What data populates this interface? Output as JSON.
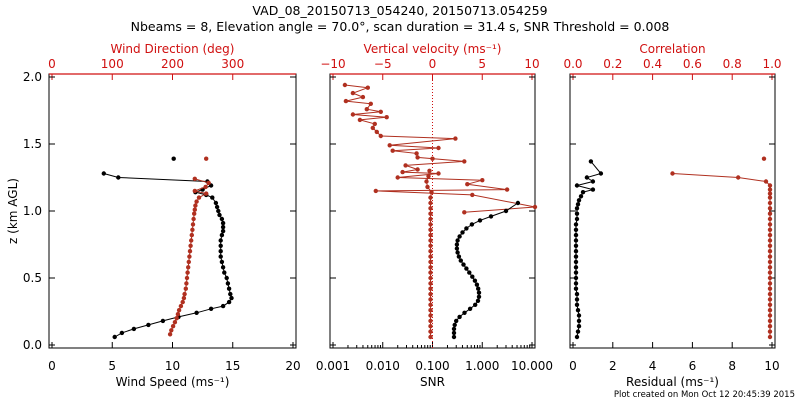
{
  "header": {
    "title_line1": "VAD_08_20150713_054240, 20150713.054259",
    "title_line2": "Nbeams = 8, Elevation angle = 70.0°, scan duration = 31.4 s, SNR Threshold = 0.008"
  },
  "footer": {
    "created": "Plot created on Mon Oct 12 20:45:39 2015"
  },
  "colors": {
    "black_series": "#000000",
    "red_series": "#b03020",
    "red_axis": "#d01010"
  },
  "chart_data": [
    {
      "type": "line",
      "ylabel": "z (km AGL)",
      "ylim": [
        0,
        2.0
      ],
      "y_ticks": [
        "0.0",
        "0.5",
        "1.0",
        "1.5",
        "2.0"
      ],
      "bottom_axis": {
        "label": "Wind Speed (ms⁻¹)",
        "range": [
          0,
          20
        ],
        "ticks": [
          "0",
          "5",
          "10",
          "15",
          "20"
        ]
      },
      "top_axis": {
        "label": "Wind Direction (deg)",
        "range": [
          0,
          400
        ],
        "ticks": [
          "0",
          "100",
          "200",
          "300"
        ]
      },
      "series": [
        {
          "axis": "bottom",
          "points": [
            [
              4.3,
              1.28
            ],
            [
              5.5,
              1.25
            ],
            [
              12.9,
              1.22
            ],
            [
              13.2,
              1.19
            ],
            [
              12.5,
              1.16
            ],
            [
              11.9,
              1.14
            ],
            [
              12.8,
              1.12
            ],
            [
              13.3,
              1.1
            ],
            [
              13.6,
              1.06
            ],
            [
              13.7,
              1.03
            ],
            [
              13.8,
              1.0
            ],
            [
              13.9,
              0.97
            ],
            [
              14.1,
              0.94
            ],
            [
              14.2,
              0.91
            ],
            [
              14.2,
              0.88
            ],
            [
              14.2,
              0.85
            ],
            [
              14.1,
              0.82
            ],
            [
              14.0,
              0.78
            ],
            [
              14.0,
              0.74
            ],
            [
              14.0,
              0.7
            ],
            [
              14.0,
              0.66
            ],
            [
              14.1,
              0.62
            ],
            [
              14.2,
              0.58
            ],
            [
              14.3,
              0.54
            ],
            [
              14.5,
              0.5
            ],
            [
              14.6,
              0.46
            ],
            [
              14.7,
              0.42
            ],
            [
              14.8,
              0.38
            ],
            [
              14.9,
              0.35
            ],
            [
              14.7,
              0.32
            ],
            [
              14.2,
              0.29
            ],
            [
              13.2,
              0.27
            ],
            [
              12.0,
              0.24
            ],
            [
              10.5,
              0.21
            ],
            [
              9.2,
              0.18
            ],
            [
              8.0,
              0.15
            ],
            [
              6.8,
              0.12
            ],
            [
              5.8,
              0.09
            ],
            [
              5.2,
              0.06
            ]
          ],
          "isolated": [
            [
              10.1,
              1.39
            ]
          ]
        },
        {
          "axis": "top",
          "points": [
            [
              237,
              1.24
            ],
            [
              260,
              1.21
            ],
            [
              255,
              1.18
            ],
            [
              237,
              1.15
            ],
            [
              256,
              1.13
            ],
            [
              244,
              1.1
            ],
            [
              240,
              1.07
            ],
            [
              238,
              1.04
            ],
            [
              237,
              1.01
            ],
            [
              236,
              0.98
            ],
            [
              235,
              0.94
            ],
            [
              234,
              0.9
            ],
            [
              233,
              0.86
            ],
            [
              232,
              0.82
            ],
            [
              231,
              0.78
            ],
            [
              230,
              0.74
            ],
            [
              229,
              0.7
            ],
            [
              228,
              0.66
            ],
            [
              227,
              0.62
            ],
            [
              226,
              0.58
            ],
            [
              225,
              0.54
            ],
            [
              224,
              0.5
            ],
            [
              223,
              0.46
            ],
            [
              222,
              0.42
            ],
            [
              220,
              0.38
            ],
            [
              219,
              0.35
            ],
            [
              217,
              0.32
            ],
            [
              214,
              0.29
            ],
            [
              211,
              0.26
            ],
            [
              209,
              0.23
            ],
            [
              207,
              0.2
            ],
            [
              204,
              0.17
            ],
            [
              201,
              0.14
            ],
            [
              198,
              0.11
            ],
            [
              196,
              0.08
            ]
          ],
          "isolated": [
            [
              256,
              1.39
            ]
          ]
        }
      ]
    },
    {
      "type": "line",
      "ylim": [
        0,
        2.0
      ],
      "bottom_axis": {
        "label": "SNR",
        "scale": "log",
        "range": [
          0.001,
          10
        ],
        "ticks": [
          "0.001",
          "0.010",
          "0.100",
          "1.000",
          "10.000"
        ]
      },
      "top_axis": {
        "label": "Vertical velocity (ms⁻¹)",
        "range": [
          -10,
          10
        ],
        "ticks": [
          "−10",
          "−5",
          "0",
          "5",
          "10"
        ]
      },
      "top_zero_line": true,
      "series": [
        {
          "axis": "top",
          "points": [
            [
              -8.8,
              1.94
            ],
            [
              -6.5,
              1.92
            ],
            [
              -8.0,
              1.88
            ],
            [
              -7.0,
              1.85
            ],
            [
              -8.7,
              1.82
            ],
            [
              -6.2,
              1.8
            ],
            [
              -6.6,
              1.76
            ],
            [
              -5.2,
              1.74
            ],
            [
              -8.0,
              1.72
            ],
            [
              -4.6,
              1.7
            ],
            [
              -7.3,
              1.68
            ],
            [
              -5.8,
              1.65
            ],
            [
              -6.0,
              1.62
            ],
            [
              -5.6,
              1.59
            ],
            [
              -5.2,
              1.56
            ],
            [
              2.3,
              1.54
            ],
            [
              -4.3,
              1.49
            ],
            [
              0.6,
              1.47
            ],
            [
              -4.0,
              1.45
            ],
            [
              -1.6,
              1.43
            ],
            [
              -1.5,
              1.4
            ],
            [
              3.2,
              1.37
            ],
            [
              -2.7,
              1.34
            ],
            [
              -1.5,
              1.31
            ],
            [
              -3.0,
              1.29
            ],
            [
              0.6,
              1.28
            ],
            [
              -3.5,
              1.25
            ],
            [
              5.0,
              1.23
            ],
            [
              3.5,
              1.2
            ],
            [
              7.5,
              1.16
            ],
            [
              -5.7,
              1.15
            ],
            [
              4.0,
              1.12
            ],
            [
              10.3,
              1.03
            ],
            [
              3.2,
              0.99
            ]
          ],
          "isolated": []
        },
        {
          "axis": "bottom_log",
          "points": [
            [
              5.2,
              1.06
            ],
            [
              3.0,
              1.0
            ],
            [
              1.5,
              0.96
            ],
            [
              0.9,
              0.93
            ],
            [
              0.62,
              0.9
            ],
            [
              0.48,
              0.87
            ],
            [
              0.4,
              0.84
            ],
            [
              0.35,
              0.81
            ],
            [
              0.32,
              0.78
            ],
            [
              0.31,
              0.75
            ],
            [
              0.31,
              0.72
            ],
            [
              0.32,
              0.69
            ],
            [
              0.34,
              0.66
            ],
            [
              0.37,
              0.63
            ],
            [
              0.42,
              0.6
            ],
            [
              0.48,
              0.57
            ],
            [
              0.55,
              0.54
            ],
            [
              0.63,
              0.51
            ],
            [
              0.71,
              0.48
            ],
            [
              0.78,
              0.45
            ],
            [
              0.83,
              0.42
            ],
            [
              0.86,
              0.39
            ],
            [
              0.86,
              0.36
            ],
            [
              0.82,
              0.33
            ],
            [
              0.72,
              0.3
            ],
            [
              0.57,
              0.27
            ],
            [
              0.44,
              0.24
            ],
            [
              0.35,
              0.21
            ],
            [
              0.3,
              0.18
            ],
            [
              0.28,
              0.15
            ],
            [
              0.27,
              0.12
            ],
            [
              0.27,
              0.09
            ],
            [
              0.27,
              0.06
            ]
          ],
          "isolated": []
        },
        {
          "axis": "top",
          "points": [
            [
              -0.3,
              1.3
            ],
            [
              -0.4,
              1.26
            ],
            [
              -0.6,
              1.22
            ],
            [
              -0.5,
              1.18
            ],
            [
              -0.1,
              1.14
            ],
            [
              -0.2,
              1.1
            ],
            [
              -0.2,
              1.06
            ],
            [
              -0.2,
              1.02
            ],
            [
              -0.2,
              0.98
            ],
            [
              -0.2,
              0.94
            ],
            [
              -0.2,
              0.9
            ],
            [
              -0.2,
              0.86
            ],
            [
              -0.2,
              0.82
            ],
            [
              -0.2,
              0.78
            ],
            [
              -0.2,
              0.74
            ],
            [
              -0.2,
              0.7
            ],
            [
              -0.2,
              0.66
            ],
            [
              -0.2,
              0.62
            ],
            [
              -0.2,
              0.58
            ],
            [
              -0.2,
              0.54
            ],
            [
              -0.2,
              0.5
            ],
            [
              -0.2,
              0.46
            ],
            [
              -0.2,
              0.42
            ],
            [
              -0.2,
              0.38
            ],
            [
              -0.2,
              0.34
            ],
            [
              -0.2,
              0.3
            ],
            [
              -0.2,
              0.26
            ],
            [
              -0.2,
              0.22
            ],
            [
              -0.2,
              0.18
            ],
            [
              -0.2,
              0.14
            ],
            [
              -0.2,
              0.1
            ],
            [
              -0.2,
              0.06
            ]
          ],
          "isolated": [
            [
              0.0,
              1.39
            ]
          ]
        }
      ]
    },
    {
      "type": "line",
      "ylim": [
        0,
        2.0
      ],
      "bottom_axis": {
        "label": "Residual (ms⁻¹)",
        "range": [
          0,
          10
        ],
        "ticks": [
          "0",
          "2",
          "4",
          "6",
          "8",
          "10"
        ]
      },
      "top_axis": {
        "label": "Correlation",
        "range": [
          0,
          1.0
        ],
        "ticks": [
          "0.0",
          "0.2",
          "0.4",
          "0.6",
          "0.8",
          "1.0"
        ]
      },
      "series": [
        {
          "axis": "bottom",
          "points": [
            [
              0.9,
              1.37
            ],
            [
              1.4,
              1.28
            ],
            [
              0.7,
              1.25
            ],
            [
              1.0,
              1.22
            ],
            [
              0.2,
              1.19
            ],
            [
              1.0,
              1.16
            ],
            [
              0.5,
              1.14
            ],
            [
              0.4,
              1.11
            ],
            [
              0.3,
              1.08
            ],
            [
              0.25,
              1.05
            ],
            [
              0.2,
              1.02
            ],
            [
              0.2,
              0.98
            ],
            [
              0.2,
              0.94
            ],
            [
              0.15,
              0.9
            ],
            [
              0.15,
              0.86
            ],
            [
              0.15,
              0.82
            ],
            [
              0.15,
              0.78
            ],
            [
              0.15,
              0.74
            ],
            [
              0.15,
              0.7
            ],
            [
              0.15,
              0.66
            ],
            [
              0.15,
              0.62
            ],
            [
              0.15,
              0.58
            ],
            [
              0.15,
              0.54
            ],
            [
              0.15,
              0.5
            ],
            [
              0.15,
              0.46
            ],
            [
              0.15,
              0.42
            ],
            [
              0.2,
              0.38
            ],
            [
              0.2,
              0.34
            ],
            [
              0.2,
              0.3
            ],
            [
              0.25,
              0.26
            ],
            [
              0.3,
              0.22
            ],
            [
              0.3,
              0.18
            ],
            [
              0.3,
              0.14
            ],
            [
              0.25,
              0.1
            ],
            [
              0.2,
              0.06
            ]
          ],
          "isolated": []
        },
        {
          "axis": "top",
          "points": [
            [
              0.5,
              1.28
            ],
            [
              0.83,
              1.25
            ],
            [
              0.97,
              1.22
            ],
            [
              0.99,
              1.19
            ],
            [
              0.99,
              1.16
            ],
            [
              0.99,
              1.13
            ],
            [
              0.99,
              1.1
            ],
            [
              0.99,
              1.06
            ],
            [
              0.99,
              1.02
            ],
            [
              0.99,
              0.98
            ],
            [
              0.99,
              0.94
            ],
            [
              0.99,
              0.9
            ],
            [
              0.99,
              0.86
            ],
            [
              0.99,
              0.82
            ],
            [
              0.99,
              0.78
            ],
            [
              0.99,
              0.74
            ],
            [
              0.99,
              0.7
            ],
            [
              0.99,
              0.66
            ],
            [
              0.99,
              0.62
            ],
            [
              0.99,
              0.58
            ],
            [
              0.99,
              0.54
            ],
            [
              0.99,
              0.5
            ],
            [
              0.99,
              0.46
            ],
            [
              0.99,
              0.42
            ],
            [
              0.99,
              0.38
            ],
            [
              0.99,
              0.34
            ],
            [
              0.99,
              0.3
            ],
            [
              0.99,
              0.26
            ],
            [
              0.99,
              0.22
            ],
            [
              0.99,
              0.18
            ],
            [
              0.99,
              0.14
            ],
            [
              0.99,
              0.1
            ],
            [
              0.99,
              0.06
            ]
          ],
          "isolated": [
            [
              0.96,
              1.39
            ]
          ]
        }
      ]
    }
  ]
}
